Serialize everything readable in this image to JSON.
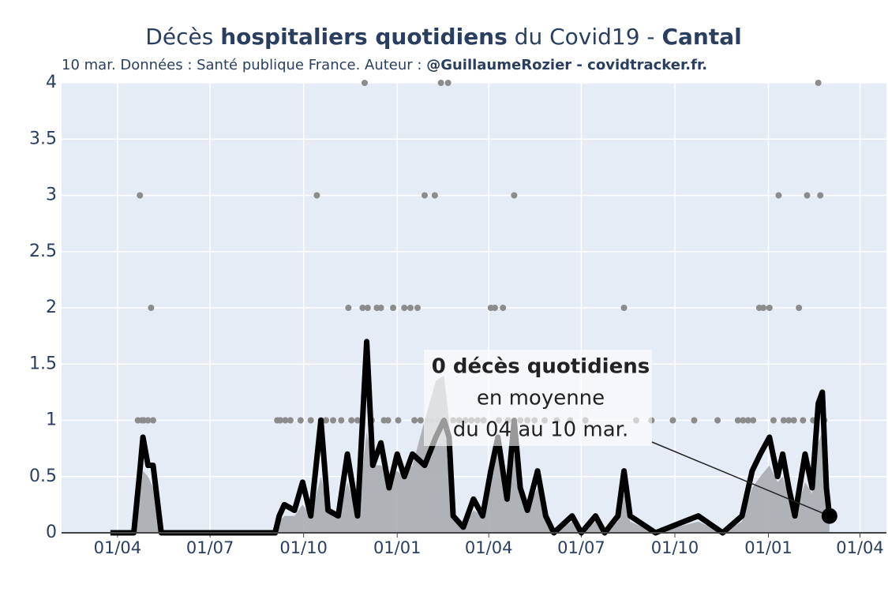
{
  "chart_data": {
    "type": "line",
    "title": [
      "Décès ",
      "hospitaliers quotidiens",
      " du Covid19 - ",
      "Cantal"
    ],
    "subtitle": [
      "10 mar. Données : Santé publique France. Auteur : ",
      "@GuillaumeRozier - covidtracker.fr."
    ],
    "annotation": [
      "0 décès quotidiens",
      "en moyenne",
      "du 04 au 10 mar."
    ],
    "xlim": [
      -55,
      756
    ],
    "xticks": [
      {
        "value": 0,
        "label": "01/04"
      },
      {
        "value": 91,
        "label": "01/07"
      },
      {
        "value": 183,
        "label": "01/10"
      },
      {
        "value": 275,
        "label": "01/01"
      },
      {
        "value": 365,
        "label": "01/04"
      },
      {
        "value": 456,
        "label": "01/07"
      },
      {
        "value": 548,
        "label": "01/10"
      },
      {
        "value": 640,
        "label": "01/01"
      },
      {
        "value": 730,
        "label": "01/04"
      }
    ],
    "ylim": [
      0,
      4
    ],
    "yticks": [
      0,
      0.5,
      1,
      1.5,
      2,
      2.5,
      3,
      3.5,
      4
    ],
    "grid": true,
    "background": "#e5ecf6",
    "series": [
      {
        "type": "scatter",
        "color": "#8c8c8c",
        "x": [
          20,
          22,
          24,
          26,
          30,
          33,
          35,
          157,
          160,
          165,
          170,
          180,
          190,
          196,
          200,
          205,
          212,
          220,
          227,
          230,
          236,
          241,
          243,
          246,
          250,
          255,
          259,
          262,
          266,
          271,
          276,
          282,
          288,
          292,
          295,
          298,
          302,
          305,
          309,
          312,
          315,
          318,
          322,
          325,
          330,
          336,
          342,
          348,
          354,
          360,
          367,
          371,
          375,
          379,
          384,
          390,
          396,
          403,
          410,
          420,
          432,
          445,
          460,
          498,
          510,
          525,
          546,
          567,
          590,
          610,
          615,
          620,
          625,
          631,
          635,
          641,
          645,
          650,
          655,
          660,
          665,
          670,
          674,
          678,
          684,
          689,
          691,
          695
        ],
        "values": [
          1,
          3,
          1,
          1,
          1,
          2,
          1,
          1,
          1,
          1,
          1,
          1,
          1,
          3,
          1,
          1,
          1,
          1,
          2,
          1,
          1,
          2,
          4,
          2,
          1,
          2,
          2,
          1,
          1,
          2,
          1,
          2,
          2,
          1,
          2,
          1,
          3,
          1,
          1,
          3,
          1,
          4,
          1,
          4,
          1,
          1,
          1,
          1,
          1,
          1,
          2,
          2,
          1,
          2,
          1,
          3,
          1,
          1,
          1,
          1,
          1,
          1,
          1,
          2,
          1,
          1,
          1,
          1,
          1,
          1,
          1,
          1,
          1,
          2,
          2,
          2,
          1,
          3,
          1,
          1,
          1,
          2,
          1,
          3,
          1,
          4,
          3,
          1
        ]
      },
      {
        "type": "area",
        "color": "#a9acb0",
        "x": [
          -7,
          16,
          22,
          25,
          30,
          35,
          39,
          43,
          155,
          159,
          164,
          174,
          182,
          190,
          200,
          207,
          217,
          226,
          236,
          245,
          251,
          259,
          267,
          275,
          282,
          290,
          302,
          313,
          321,
          326,
          330,
          340,
          350,
          359,
          367,
          374,
          383,
          390,
          396,
          403,
          413,
          421,
          429,
          447,
          456,
          470,
          479,
          492,
          498,
          504,
          529,
          571,
          595,
          614,
          624,
          632,
          641,
          649,
          654,
          660,
          666,
          676,
          683,
          689,
          693,
          697,
          700
        ],
        "values": [
          0,
          0,
          0.3,
          0.55,
          0.5,
          0.4,
          0.2,
          0,
          0,
          0.1,
          0.15,
          0.15,
          0.25,
          0.15,
          0.5,
          0.2,
          0.15,
          0.45,
          0.15,
          0.9,
          0.6,
          0.6,
          0.5,
          0.55,
          0.5,
          0.6,
          1.0,
          1.35,
          1.4,
          1.0,
          0.2,
          0.05,
          0.2,
          0.15,
          0.4,
          0.9,
          0.35,
          0.7,
          0.4,
          0.2,
          0.4,
          0.15,
          0,
          0.1,
          0,
          0.1,
          0,
          0.1,
          0.35,
          0.1,
          0,
          0.1,
          0,
          0.1,
          0.4,
          0.5,
          0.6,
          0.45,
          0.5,
          0.3,
          0.15,
          0.45,
          0.35,
          0.8,
          0.9,
          0.35,
          0.15
        ]
      },
      {
        "type": "line",
        "color": "#000000",
        "x": [
          -7,
          16,
          22,
          25,
          30,
          35,
          39,
          43,
          155,
          159,
          164,
          174,
          182,
          190,
          200,
          207,
          217,
          226,
          236,
          245,
          251,
          259,
          267,
          275,
          282,
          290,
          302,
          313,
          321,
          326,
          330,
          340,
          350,
          359,
          367,
          374,
          383,
          390,
          396,
          403,
          413,
          421,
          429,
          447,
          456,
          470,
          479,
          492,
          498,
          504,
          529,
          571,
          595,
          614,
          624,
          632,
          641,
          649,
          654,
          660,
          666,
          676,
          683,
          689,
          693,
          697,
          700
        ],
        "values": [
          0,
          0,
          0.55,
          0.85,
          0.6,
          0.6,
          0.3,
          0,
          0,
          0.15,
          0.25,
          0.2,
          0.45,
          0.15,
          1.0,
          0.2,
          0.15,
          0.7,
          0.15,
          1.7,
          0.6,
          0.8,
          0.4,
          0.7,
          0.5,
          0.7,
          0.6,
          0.85,
          1.0,
          0.85,
          0.15,
          0.05,
          0.3,
          0.15,
          0.55,
          0.85,
          0.3,
          1.0,
          0.4,
          0.2,
          0.55,
          0.15,
          0,
          0.15,
          0,
          0.15,
          0,
          0.15,
          0.55,
          0.15,
          0,
          0.15,
          0,
          0.15,
          0.55,
          0.7,
          0.85,
          0.5,
          0.7,
          0.4,
          0.15,
          0.7,
          0.4,
          1.15,
          1.25,
          0.4,
          0.15
        ]
      }
    ]
  }
}
